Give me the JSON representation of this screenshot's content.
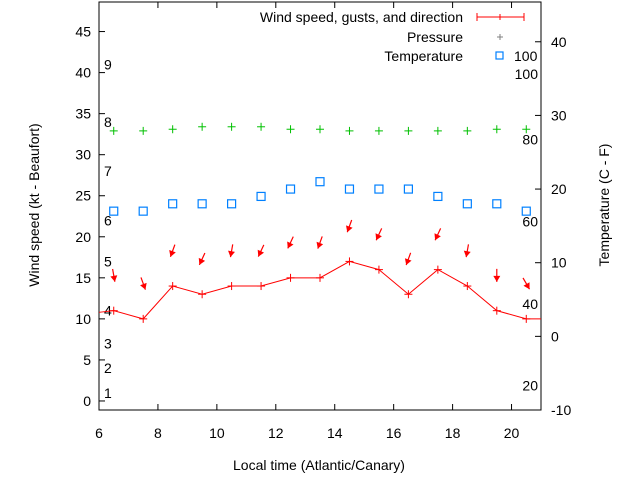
{
  "chart_data": {
    "type": "line",
    "xlabel": "Local time (Atlantic/Canary)",
    "ylabel": "Wind speed (kt - Beaufort)",
    "y2label": "Temperature (C - F)",
    "xlim": [
      6,
      21
    ],
    "ylim": [
      -1.1,
      48.6
    ],
    "y2lim": [
      -10,
      45.4
    ],
    "xticks": [
      6,
      8,
      10,
      12,
      14,
      16,
      18,
      20
    ],
    "yticks": [
      0,
      5,
      10,
      15,
      20,
      25,
      30,
      35,
      40,
      45
    ],
    "y2ticks": [
      -10,
      0,
      10,
      20,
      30,
      40
    ],
    "beaufort_labels": [
      {
        "label": "1",
        "kt": 1
      },
      {
        "label": "2",
        "kt": 4
      },
      {
        "label": "3",
        "kt": 7
      },
      {
        "label": "4",
        "kt": 11
      },
      {
        "label": "5",
        "kt": 17
      },
      {
        "label": "6",
        "kt": 22
      },
      {
        "label": "7",
        "kt": 28
      },
      {
        "label": "8",
        "kt": 34
      },
      {
        "label": "9",
        "kt": 41
      }
    ],
    "fahrenheit_labels": [
      {
        "label": "20",
        "c": -6.7
      },
      {
        "label": "40",
        "c": 4.4
      },
      {
        "label": "60",
        "c": 15.6
      },
      {
        "label": "80",
        "c": 26.7
      },
      {
        "label": "100",
        "c": 37.8
      }
    ],
    "x": [
      6.5,
      7.5,
      8.5,
      9.5,
      10.5,
      11.5,
      12.5,
      13.5,
      14.5,
      15.5,
      16.5,
      17.5,
      18.5,
      19.5,
      20.5
    ],
    "series": [
      {
        "name": "Wind speed, gusts, and direction",
        "color": "#ff0000",
        "axis": "y",
        "values": [
          11,
          10,
          14,
          13,
          14,
          14,
          15,
          15,
          17,
          16,
          13,
          16,
          14,
          11,
          10
        ],
        "direction_from_deg": [
          350,
          340,
          20,
          25,
          10,
          25,
          25,
          20,
          20,
          25,
          20,
          25,
          10,
          0,
          330
        ],
        "line_start": [
          6,
          10.8
        ],
        "line_end": [
          21,
          10
        ]
      },
      {
        "name": "Pressure",
        "color": "#00c000",
        "axis": "y",
        "values": [
          32.9,
          32.9,
          33.1,
          33.4,
          33.4,
          33.4,
          33.1,
          33.1,
          32.9,
          32.9,
          32.9,
          32.9,
          32.9,
          33.1,
          33.1
        ]
      },
      {
        "name": "Temperature",
        "color": "#0080ff",
        "axis": "y2",
        "values": [
          17,
          17,
          18,
          18,
          18,
          19,
          20,
          21,
          20,
          20,
          20,
          19,
          18,
          18,
          17
        ]
      }
    ],
    "legend": {
      "placement": "top-right",
      "temperature_extra": "100"
    }
  }
}
